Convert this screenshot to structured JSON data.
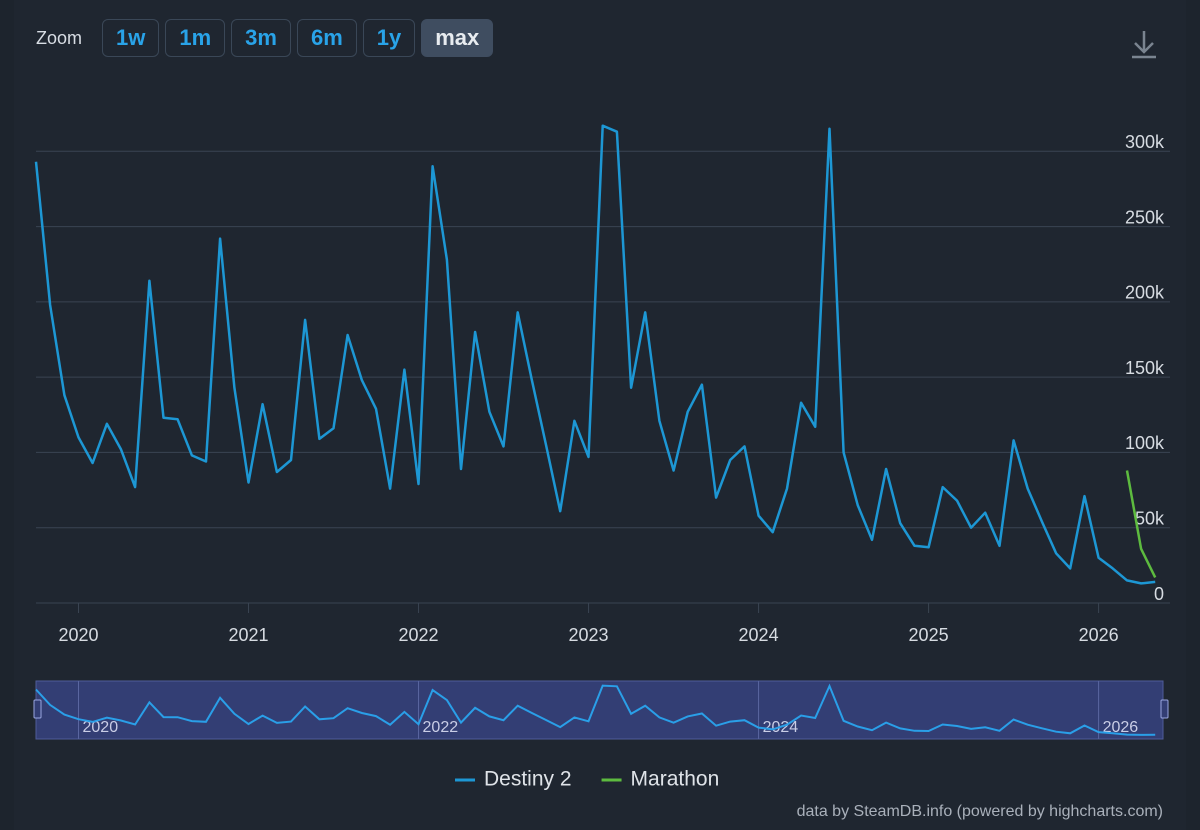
{
  "chart_data": {
    "type": "line",
    "zoom": {
      "label": "Zoom",
      "options": [
        "1w",
        "1m",
        "3m",
        "6m",
        "1y",
        "max"
      ],
      "selected": "max"
    },
    "series": [
      {
        "name": "Destiny 2",
        "color": "#1d97d4",
        "x": [
          2019.75,
          2019.833,
          2019.917,
          2020,
          2020.083,
          2020.167,
          2020.25,
          2020.333,
          2020.417,
          2020.5,
          2020.583,
          2020.667,
          2020.75,
          2020.833,
          2020.917,
          2021,
          2021.083,
          2021.167,
          2021.25,
          2021.333,
          2021.417,
          2021.5,
          2021.583,
          2021.667,
          2021.75,
          2021.833,
          2021.917,
          2022,
          2022.083,
          2022.167,
          2022.25,
          2022.333,
          2022.417,
          2022.5,
          2022.583,
          2022.667,
          2022.75,
          2022.833,
          2022.917,
          2023,
          2023.083,
          2023.167,
          2023.25,
          2023.333,
          2023.417,
          2023.5,
          2023.583,
          2023.667,
          2023.75,
          2023.833,
          2023.917,
          2024,
          2024.083,
          2024.167,
          2024.25,
          2024.333,
          2024.417,
          2024.5,
          2024.583,
          2024.667,
          2024.75,
          2024.833,
          2024.917,
          2025,
          2025.083,
          2025.167,
          2025.25,
          2025.333,
          2025.417,
          2025.5,
          2025.583,
          2025.667,
          2025.75,
          2025.833,
          2025.917,
          2026,
          2026.083,
          2026.167,
          2026.25,
          2026.333
        ],
        "values": [
          293000,
          198000,
          138000,
          110000,
          93000,
          119000,
          102000,
          77000,
          214000,
          123000,
          122000,
          98000,
          94000,
          242000,
          143000,
          80000,
          132000,
          87000,
          95000,
          188000,
          109000,
          116000,
          178000,
          148000,
          129000,
          76000,
          155000,
          79000,
          290000,
          228000,
          89000,
          180000,
          127000,
          104000,
          193000,
          148000,
          105000,
          61000,
          121000,
          97000,
          317000,
          313000,
          143000,
          193000,
          121000,
          88000,
          127000,
          145000,
          70000,
          95000,
          104000,
          58000,
          47000,
          76000,
          133000,
          117000,
          315000,
          100000,
          65000,
          42000,
          89000,
          53000,
          38000,
          37000,
          77000,
          68000,
          50000,
          60000,
          38000,
          108000,
          76000,
          54000,
          33000,
          23000,
          71000,
          30000,
          23000,
          15000,
          13000,
          14000
        ]
      },
      {
        "name": "Marathon",
        "color": "#5dbb3f",
        "x": [
          2026.167,
          2026.25,
          2026.333
        ],
        "values": [
          88000,
          36000,
          17000
        ]
      }
    ],
    "xlim": [
      2019.75,
      2026.42
    ],
    "xticks": [
      2020,
      2021,
      2022,
      2023,
      2024,
      2025,
      2026
    ],
    "ylim": [
      0,
      350000
    ],
    "yticks": [
      0,
      {
        "value": 50000,
        "label": "50k"
      },
      {
        "value": 100000,
        "label": "100k"
      },
      {
        "value": 150000,
        "label": "150k"
      },
      {
        "value": 200000,
        "label": "200k"
      },
      {
        "value": 250000,
        "label": "250k"
      },
      {
        "value": 300000,
        "label": "300k"
      }
    ],
    "grid": true,
    "navigator": {
      "xticks": [
        2020,
        2022,
        2024,
        2026
      ]
    },
    "credits": "data by SteamDB.info (powered by highcharts.com)"
  }
}
